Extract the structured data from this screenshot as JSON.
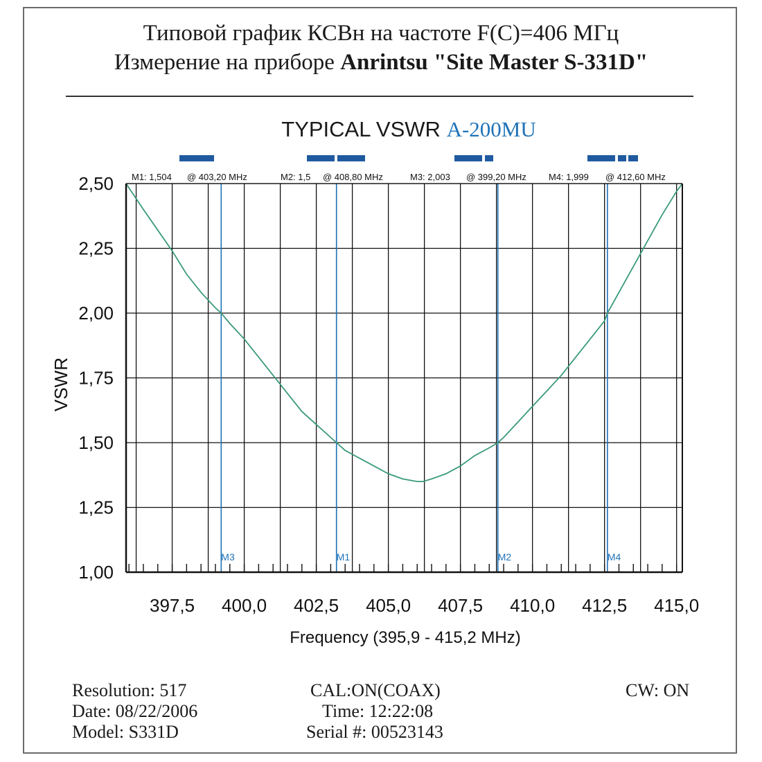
{
  "header": {
    "title_line1": "Типовой график КСВн на частоте F(C)=406 МГц",
    "title_line2_prefix": "Измерение на приборе ",
    "title_line2_bold": "Anrintsu \"Site Master S-331D\""
  },
  "chart_data": {
    "type": "line",
    "title_prefix": "TYPICAL VSWR ",
    "title_model": "A-200MU",
    "xlabel": "Frequency (395,9 - 415,2 MHz)",
    "ylabel": "VSWR",
    "xlim": [
      395.9,
      415.2
    ],
    "ylim": [
      1.0,
      2.5
    ],
    "x_ticks": [
      "397,5",
      "400,0",
      "402,5",
      "405,0",
      "407,5",
      "410,0",
      "412,5",
      "415,0"
    ],
    "x_tick_values": [
      397.5,
      400.0,
      402.5,
      405.0,
      407.5,
      410.0,
      412.5,
      415.0
    ],
    "y_ticks": [
      "1,00",
      "1,25",
      "1,50",
      "1,75",
      "2,00",
      "2,25",
      "2,50"
    ],
    "y_tick_values": [
      1.0,
      1.25,
      1.5,
      1.75,
      2.0,
      2.25,
      2.5
    ],
    "grid": true,
    "series": [
      {
        "x": [
          395.9,
          396.5,
          397.0,
          397.5,
          398.0,
          398.5,
          399.0,
          399.2,
          399.5,
          400.0,
          400.5,
          401.0,
          401.5,
          402.0,
          402.5,
          403.0,
          403.2,
          403.5,
          404.0,
          404.5,
          405.0,
          405.5,
          406.0,
          406.2,
          406.5,
          407.0,
          407.5,
          408.0,
          408.5,
          408.8,
          409.0,
          409.5,
          410.0,
          410.5,
          411.0,
          411.5,
          412.0,
          412.5,
          412.6,
          413.0,
          413.5,
          414.0,
          414.5,
          415.0,
          415.2
        ],
        "y": [
          2.5,
          2.4,
          2.32,
          2.24,
          2.15,
          2.08,
          2.02,
          2.0,
          1.96,
          1.9,
          1.83,
          1.76,
          1.69,
          1.62,
          1.57,
          1.52,
          1.5,
          1.47,
          1.44,
          1.41,
          1.38,
          1.36,
          1.35,
          1.35,
          1.36,
          1.38,
          1.41,
          1.45,
          1.48,
          1.5,
          1.52,
          1.58,
          1.64,
          1.7,
          1.76,
          1.83,
          1.9,
          1.97,
          2.0,
          2.08,
          2.18,
          2.28,
          2.38,
          2.47,
          2.5
        ],
        "color": "#3a9a7a"
      }
    ],
    "markers": [
      {
        "name": "M3",
        "x": 399.2
      },
      {
        "name": "M1",
        "x": 403.2
      },
      {
        "name": "M2",
        "x": 408.8
      },
      {
        "name": "M4",
        "x": 412.6
      }
    ],
    "marker_readouts": [
      {
        "label": "M1: 1,504",
        "at": "@ 403,20 MHz"
      },
      {
        "label": "M2: 1,5",
        "at": "@ 408,80 MHz"
      },
      {
        "label": "M3: 2,003",
        "at": "@ 399,20 MHz"
      },
      {
        "label": "M4: 1,999",
        "at": "@ 412,60 MHz"
      }
    ]
  },
  "colors": {
    "accent": "#1e72b8",
    "curve": "#3a9a7a",
    "marker_bar": "#1f5aa0",
    "grid": "#111111"
  },
  "footer": {
    "resolution": "Resolution:  517",
    "date": "Date: 08/22/2006",
    "model": "Model: S331D",
    "cal": "CAL:ON(COAX)",
    "time": "Time: 12:22:08",
    "serial": "Serial #: 00523143",
    "cw": "CW: ON"
  }
}
